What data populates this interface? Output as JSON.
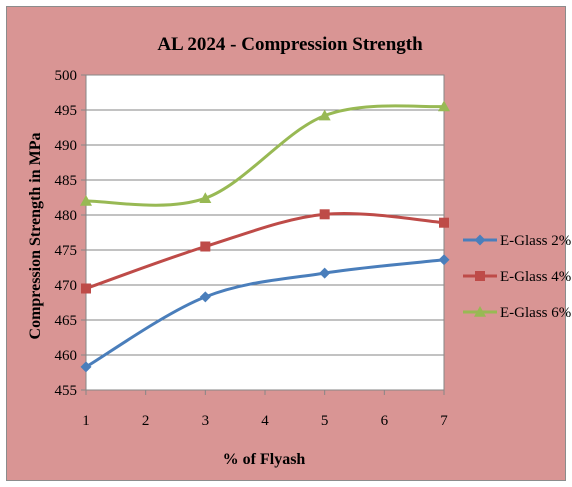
{
  "chart_data": {
    "type": "line",
    "title": "AL 2024 - Compression Strength",
    "xlabel": "% of Flyash",
    "ylabel": "Compression Strength in MPa",
    "xlim": [
      1,
      7
    ],
    "ylim": [
      455,
      500
    ],
    "x_ticks": [
      1,
      2,
      3,
      4,
      5,
      6,
      7
    ],
    "y_ticks": [
      455,
      460,
      465,
      470,
      475,
      480,
      485,
      490,
      495,
      500
    ],
    "x": [
      1,
      3,
      5,
      7
    ],
    "series": [
      {
        "name": "E-Glass 2%",
        "values": [
          458.3,
          468.3,
          471.7,
          473.6
        ],
        "color": "#4a7ebb",
        "marker": "diamond"
      },
      {
        "name": "E-Glass 4%",
        "values": [
          469.5,
          475.5,
          480.1,
          478.9
        ],
        "color": "#be4b48",
        "marker": "square"
      },
      {
        "name": "E-Glass 6%",
        "values": [
          482.0,
          482.4,
          494.2,
          495.5
        ],
        "color": "#98b954",
        "marker": "triangle"
      }
    ],
    "grid": "horizontal",
    "legend": "right",
    "plot_background": "#ffffff",
    "chart_background": "#d99594",
    "gridline_color": "#868686"
  }
}
